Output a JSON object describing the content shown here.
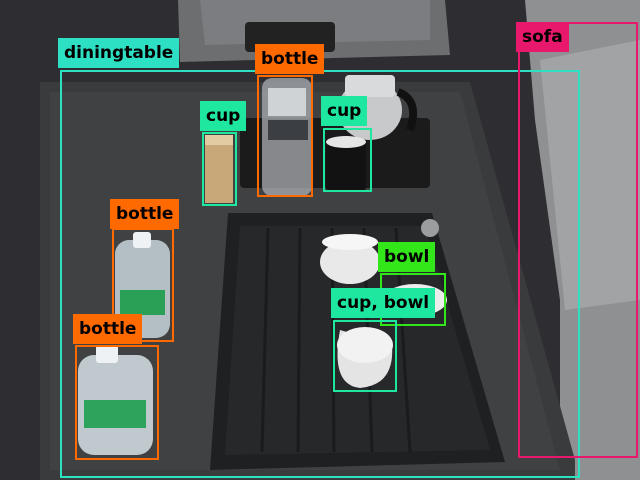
{
  "colors": {
    "diningtable": "#2de0c4",
    "sofa": "#e8196d",
    "bottle": "#ff6a00",
    "cup": "#1ee8a0",
    "bowl": "#33e61a"
  },
  "detections": [
    {
      "label": "diningtable",
      "class": "diningtable"
    },
    {
      "label": "sofa",
      "class": "sofa"
    },
    {
      "label": "bottle",
      "class": "bottle"
    },
    {
      "label": "cup",
      "class": "cup"
    },
    {
      "label": "cup",
      "class": "cup"
    },
    {
      "label": "bottle",
      "class": "bottle"
    },
    {
      "label": "bottle",
      "class": "bottle"
    },
    {
      "label": "bowl",
      "class": "bowl"
    },
    {
      "label": "cup, bowl",
      "class": "cup"
    }
  ]
}
